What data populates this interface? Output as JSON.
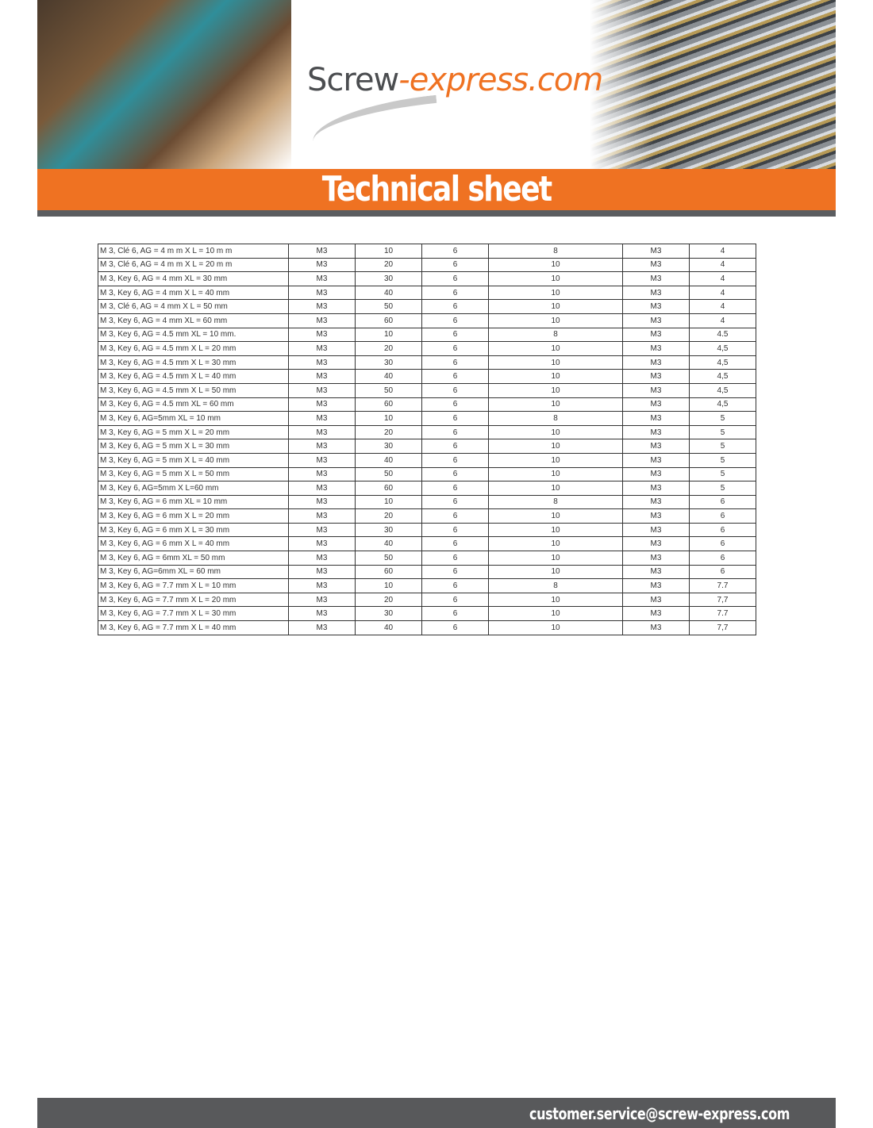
{
  "header": {
    "logo_part1": "Screw",
    "logo_part2": "-express.com",
    "title": "Technical sheet",
    "brand_color": "#ef7222"
  },
  "table": {
    "rows": [
      [
        "M 3, Clé 6, AG = 4 m m X L = 10 m m",
        "M3",
        "10",
        "6",
        "8",
        "M3",
        "4"
      ],
      [
        "M 3, Clé 6, AG = 4 m m X L = 20 m m",
        "M3",
        "20",
        "6",
        "10",
        "M3",
        "4"
      ],
      [
        "M 3, Key 6, AG = 4 mm XL = 30 mm",
        "M3",
        "30",
        "6",
        "10",
        "M3",
        "4"
      ],
      [
        "M 3, Key 6, AG = 4 mm X L = 40 mm",
        "M3",
        "40",
        "6",
        "10",
        "M3",
        "4"
      ],
      [
        "M 3, Clé 6, AG = 4 mm X L = 50 mm",
        "M3",
        "50",
        "6",
        "10",
        "M3",
        "4"
      ],
      [
        "M 3, Key 6, AG = 4 mm XL = 60 mm",
        "M3",
        "60",
        "6",
        "10",
        "M3",
        "4"
      ],
      [
        "M 3, Key 6, AG = 4.5 mm XL = 10 mm.",
        "M3",
        "10",
        "6",
        "8",
        "M3",
        "4.5"
      ],
      [
        "M 3, Key 6, AG = 4.5 mm X L = 20 mm",
        "M3",
        "20",
        "6",
        "10",
        "M3",
        "4,5"
      ],
      [
        "M 3, Key 6, AG = 4.5 mm X L = 30 mm",
        "M3",
        "30",
        "6",
        "10",
        "M3",
        "4,5"
      ],
      [
        "M 3, Key 6, AG = 4.5 mm X L = 40 mm",
        "M3",
        "40",
        "6",
        "10",
        "M3",
        "4,5"
      ],
      [
        "M 3, Key 6, AG = 4.5 mm X L = 50 mm",
        "M3",
        "50",
        "6",
        "10",
        "M3",
        "4,5"
      ],
      [
        "M 3, Key 6, AG = 4.5 mm XL = 60 mm",
        "M3",
        "60",
        "6",
        "10",
        "M3",
        "4,5"
      ],
      [
        "M 3, Key 6, AG=5mm XL = 10 mm",
        "M3",
        "10",
        "6",
        "8",
        "M3",
        "5"
      ],
      [
        "M 3, Key 6, AG = 5 mm X L = 20 mm",
        "M3",
        "20",
        "6",
        "10",
        "M3",
        "5"
      ],
      [
        "M 3, Key 6, AG = 5 mm X L = 30 mm",
        "M3",
        "30",
        "6",
        "10",
        "M3",
        "5"
      ],
      [
        "M 3, Key 6, AG = 5 mm X L = 40 mm",
        "M3",
        "40",
        "6",
        "10",
        "M3",
        "5"
      ],
      [
        "M 3, Key 6, AG = 5 mm X L = 50 mm",
        "M3",
        "50",
        "6",
        "10",
        "M3",
        "5"
      ],
      [
        "M 3, Key 6, AG=5mm X L=60 mm",
        "M3",
        "60",
        "6",
        "10",
        "M3",
        "5"
      ],
      [
        "M 3, Key 6, AG = 6 mm XL = 10 mm",
        "M3",
        "10",
        "6",
        "8",
        "M3",
        "6"
      ],
      [
        "M 3, Key 6, AG = 6 mm X L = 20 mm",
        "M3",
        "20",
        "6",
        "10",
        "M3",
        "6"
      ],
      [
        "M 3, Key 6, AG = 6 mm X L = 30 mm",
        "M3",
        "30",
        "6",
        "10",
        "M3",
        "6"
      ],
      [
        "M 3, Key 6, AG = 6 mm X L = 40 mm",
        "M3",
        "40",
        "6",
        "10",
        "M3",
        "6"
      ],
      [
        "M 3, Key 6, AG = 6mm XL = 50 mm",
        "M3",
        "50",
        "6",
        "10",
        "M3",
        "6"
      ],
      [
        "M 3, Key 6, AG=6mm XL = 60 mm",
        "M3",
        "60",
        "6",
        "10",
        "M3",
        "6"
      ],
      [
        "M 3, Key 6, AG = 7.7 mm X L = 10 mm",
        "M3",
        "10",
        "6",
        "8",
        "M3",
        "7.7"
      ],
      [
        "M 3, Key 6, AG = 7.7 mm X L = 20 mm",
        "M3",
        "20",
        "6",
        "10",
        "M3",
        "7,7"
      ],
      [
        "M 3, Key 6, AG = 7.7 mm X L = 30 mm",
        "M3",
        "30",
        "6",
        "10",
        "M3",
        "7.7"
      ],
      [
        "M 3, Key 6, AG = 7.7 mm X L = 40 mm",
        "M3",
        "40",
        "6",
        "10",
        "M3",
        "7,7"
      ]
    ]
  },
  "footer": {
    "email": "customer.service@screw-express.com"
  }
}
